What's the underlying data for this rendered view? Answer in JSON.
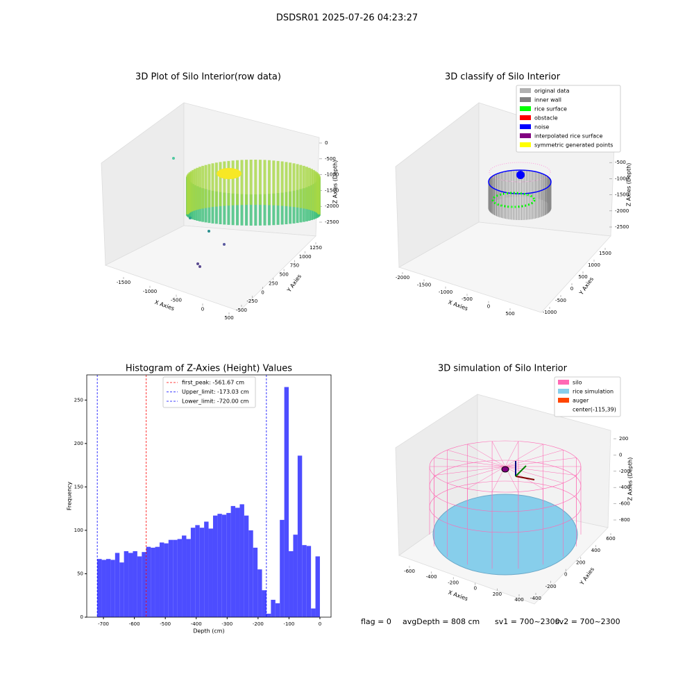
{
  "title": "DSDSR01 2025-07-26 04:23:27",
  "status": [
    "flag = 0",
    "avgDepth = 808 cm",
    "sv1 = 700~2300",
    "sv2 = 700~2300"
  ],
  "chart_data": [
    {
      "type": "scatter3d",
      "title": "3D Plot of Silo Interior(row data)",
      "xlabel": "X Axies",
      "ylabel": "Y Axies",
      "zlabel": "Z Axies (Depth)",
      "xticks": [
        -1500,
        -1000,
        -500,
        0,
        500
      ],
      "yticks": [
        -500,
        -250,
        0,
        250,
        500,
        750,
        1000,
        1250
      ],
      "zticks": [
        0,
        -500,
        -1000,
        -1500,
        -2000,
        -2500
      ]
    },
    {
      "type": "scatter3d",
      "title": "3D classify of Silo Interior",
      "xlabel": "X Axies",
      "ylabel": "Y Axies",
      "zlabel": "Z Axies (Depth)",
      "xticks": [
        -2000,
        -1500,
        -1000,
        -500,
        0,
        500
      ],
      "yticks": [
        -1000,
        -500,
        0,
        500,
        1000,
        1500
      ],
      "zticks": [
        0,
        -500,
        -1000,
        -1500,
        -2000,
        -2500
      ],
      "legend": [
        {
          "name": "original data",
          "color": "#b0b0b0"
        },
        {
          "name": "inner wall",
          "color": "#808080"
        },
        {
          "name": "rice surface",
          "color": "#00ff00"
        },
        {
          "name": "obstacle",
          "color": "#ff0000"
        },
        {
          "name": "noise",
          "color": "#0000ff"
        },
        {
          "name": "interpolated rice surface",
          "color": "#800080"
        },
        {
          "name": "symmetric generated points",
          "color": "#ffff00"
        }
      ]
    },
    {
      "type": "histogram",
      "title": "Histogram of Z-Axies (Height) Values",
      "xlabel": "Depth (cm)",
      "ylabel": "Frequency",
      "color": "#4d4dff",
      "bins": [
        -720,
        -705.6,
        -691.2,
        -676.8,
        -662.4,
        -648,
        -633.6,
        -619.2,
        -604.8,
        -590.4,
        -576,
        -561.6,
        -547.2,
        -532.8,
        -518.4,
        -504,
        -489.6,
        -475.2,
        -460.8,
        -446.4,
        -432,
        -417.6,
        -403.2,
        -388.8,
        -374.4,
        -360,
        -345.6,
        -331.2,
        -316.8,
        -302.4,
        -288,
        -273.6,
        -259.2,
        -244.8,
        -230.4,
        -216,
        -201.6,
        -187.2,
        -172.8,
        -158.4,
        -144,
        -129.6,
        -115.2,
        -100.8,
        -86.4,
        -72,
        -57.6,
        -43.2,
        -28.8,
        -14.4,
        0
      ],
      "values": [
        67,
        66,
        67,
        66,
        74,
        63,
        76,
        74,
        76,
        70,
        75,
        81,
        80,
        81,
        86,
        85,
        89,
        89,
        90,
        94,
        90,
        103,
        106,
        103,
        110,
        102,
        117,
        119,
        118,
        120,
        128,
        126,
        130,
        117,
        100,
        80,
        55,
        31,
        4,
        20,
        16,
        112,
        265,
        76,
        95,
        186,
        83,
        82,
        10,
        70
      ],
      "xlim": [
        -754,
        36
      ],
      "ylim": [
        0,
        279
      ],
      "xticks": [
        -700,
        -600,
        -500,
        -400,
        -300,
        -200,
        -100,
        0
      ],
      "yticks": [
        0,
        50,
        100,
        150,
        200,
        250
      ],
      "lines": [
        {
          "name": "first_peak: -561.67 cm",
          "value": -561.67,
          "color": "#ff0000"
        },
        {
          "name": "Upper_limit: -173.03 cm",
          "value": -173.03,
          "color": "#0000ff"
        },
        {
          "name": "Lower_limit: -720.00 cm",
          "value": -720,
          "color": "#0000ff"
        }
      ]
    },
    {
      "type": "scatter3d",
      "title": "3D simulation of Silo Interior",
      "xlabel": "X Axies",
      "ylabel": "Y Axies",
      "zlabel": "Z Axies (Depth)",
      "xticks": [
        -600,
        -400,
        -200,
        0,
        200,
        400
      ],
      "yticks": [
        -400,
        -200,
        0,
        200,
        400,
        600
      ],
      "zticks": [
        200,
        0,
        -200,
        -400,
        -600,
        -800
      ],
      "legend": [
        {
          "name": "silo",
          "color": "#ff69b4"
        },
        {
          "name": "rice simulation",
          "color": "#87ceeb"
        },
        {
          "name": "auger",
          "color": "#ff4500"
        },
        {
          "name": "center(-115,39)"
        }
      ]
    }
  ]
}
